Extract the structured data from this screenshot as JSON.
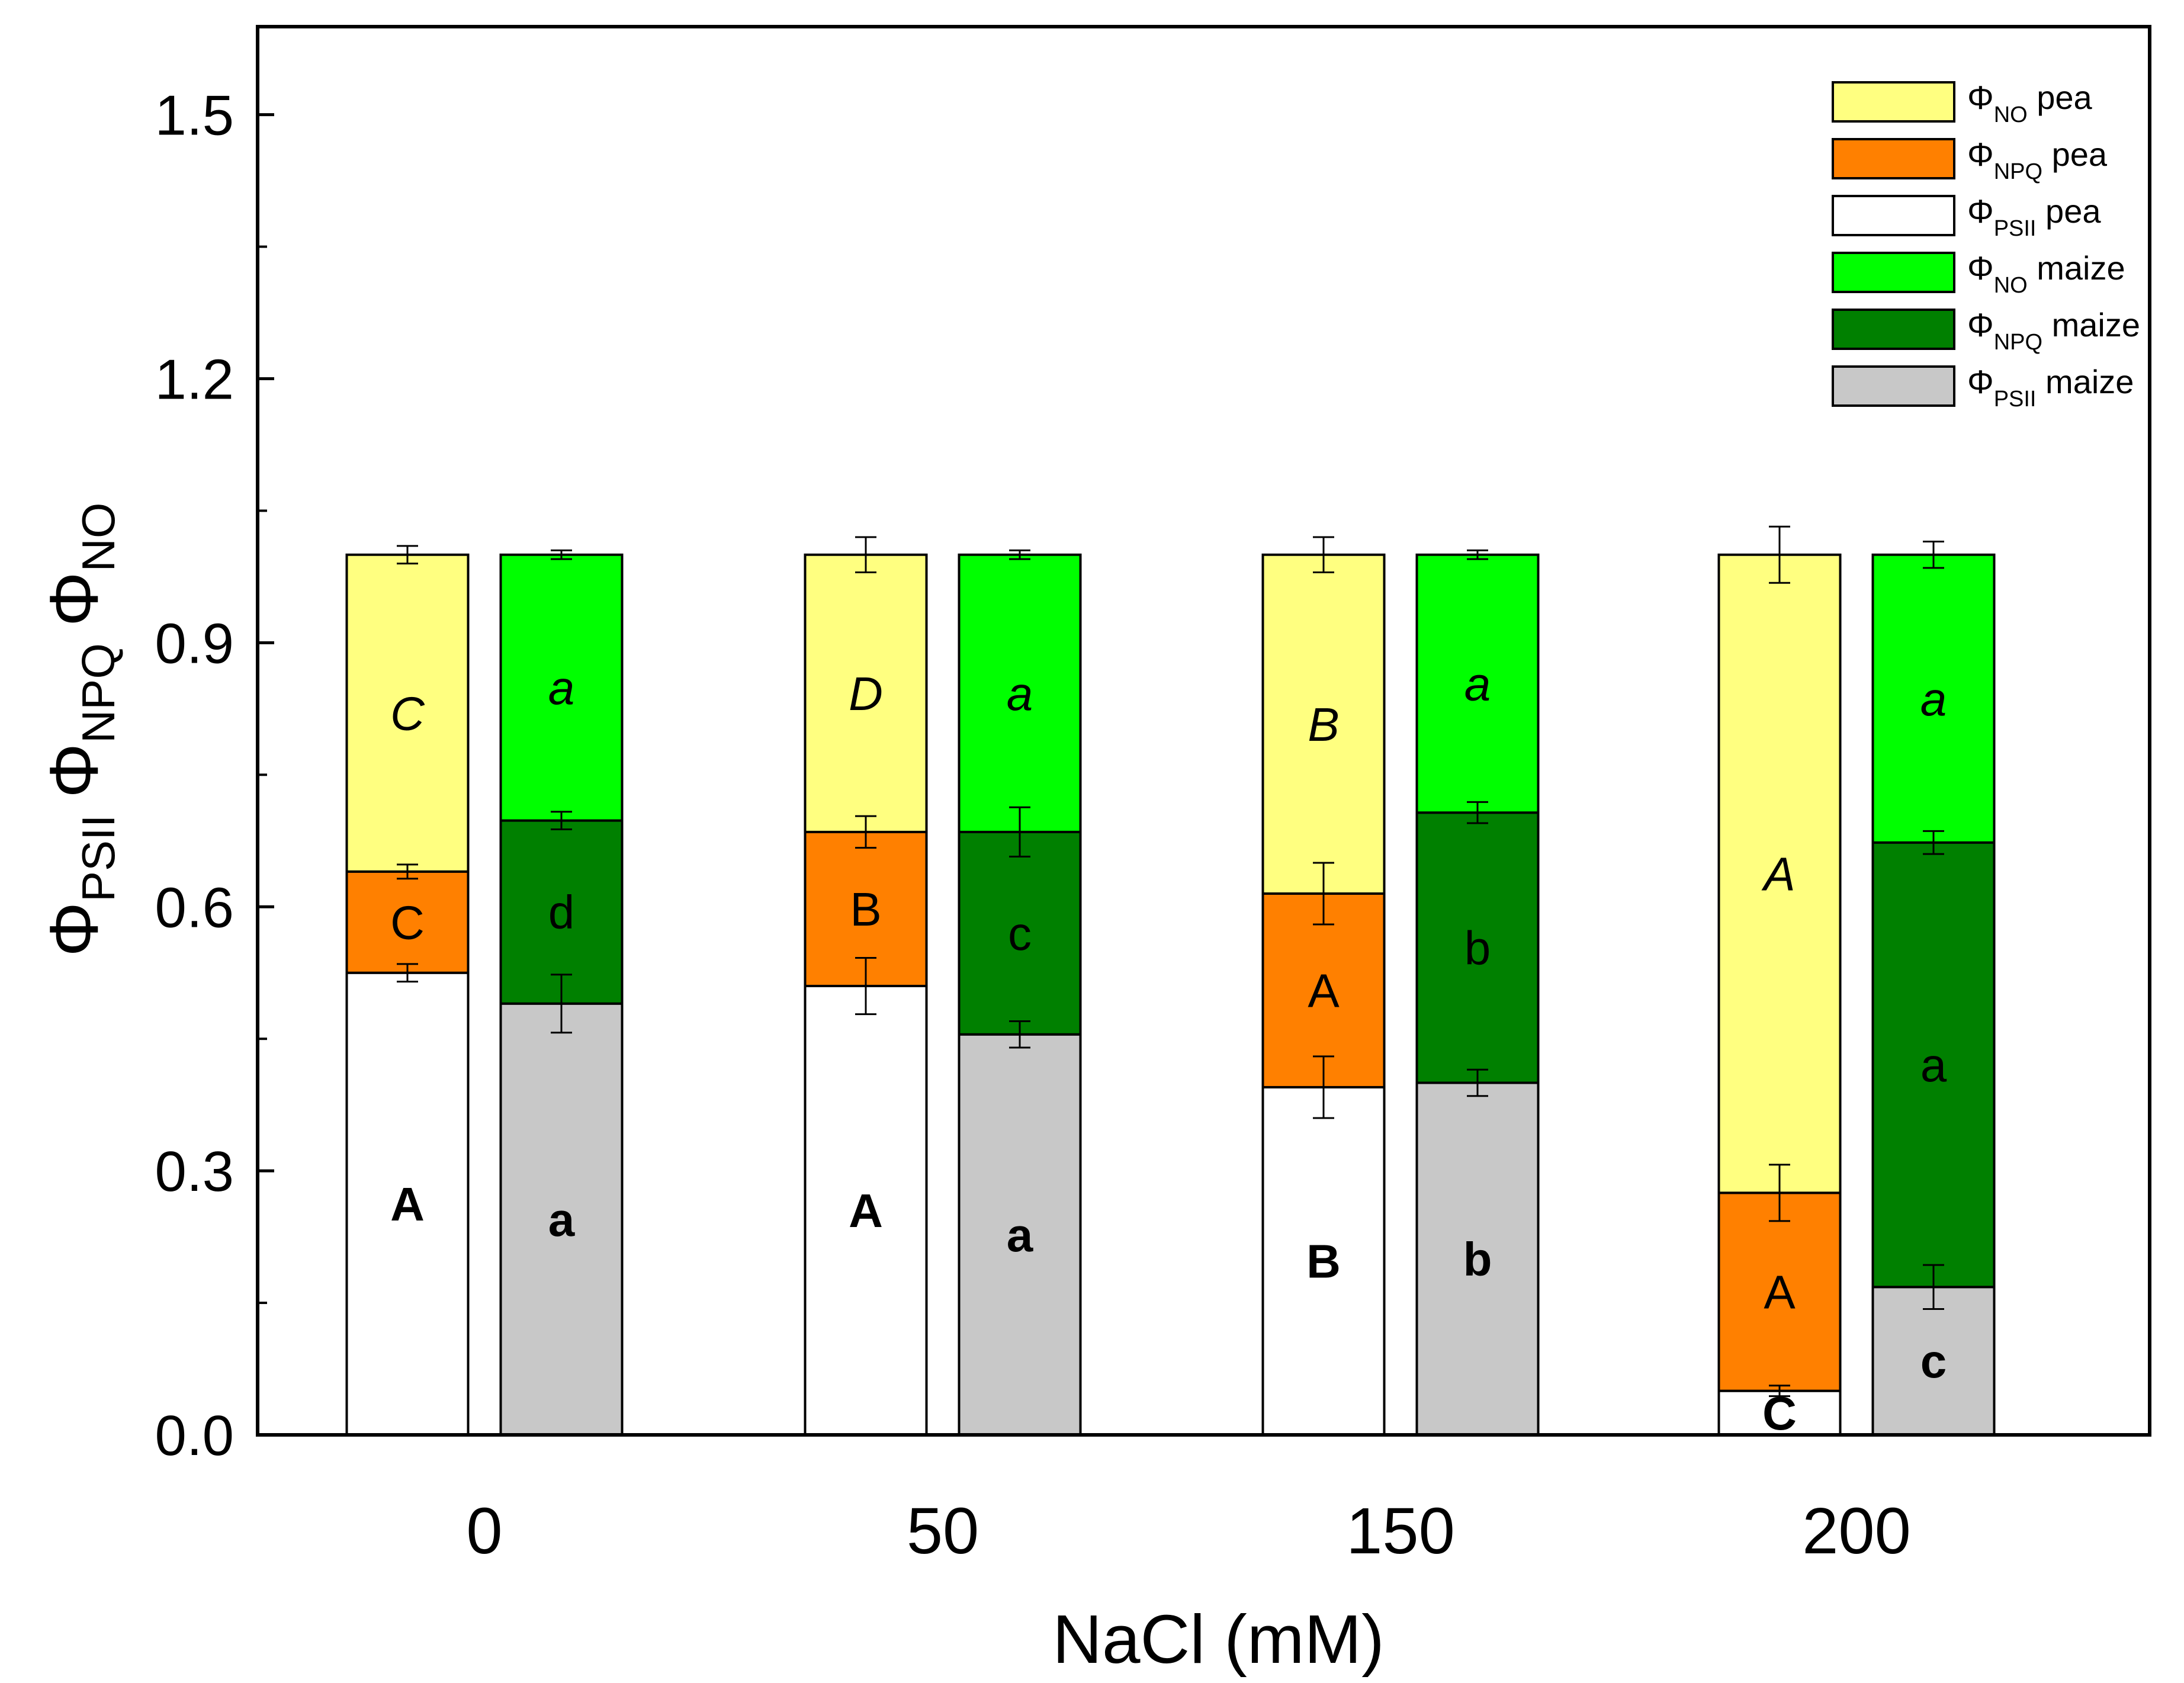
{
  "chart_data": {
    "type": "bar",
    "stacked": true,
    "xlabel": "NaCl (mM)",
    "ylabel": {
      "parts": [
        {
          "symbol": "Φ",
          "sub": "PSII"
        },
        {
          "symbol": "Φ",
          "sub": "NPQ"
        },
        {
          "symbol": "Φ",
          "sub": "NO"
        }
      ]
    },
    "ylim": [
      0,
      1.6
    ],
    "yticks": [
      "0.0",
      "0.3",
      "0.6",
      "0.9",
      "1.2",
      "1.5"
    ],
    "ytick_values": [
      0,
      0.3,
      0.6,
      0.9,
      1.2,
      1.5
    ],
    "categories": [
      "0",
      "50",
      "150",
      "200"
    ],
    "series": [
      {
        "name": "Φ_PSII pea",
        "symbol": "Φ",
        "sub": "PSII",
        "species": "pea",
        "group": "pea",
        "component": "PSII",
        "color": "#ffffff",
        "values": [
          0.525,
          0.51,
          0.395,
          0.05
        ],
        "errors": [
          0.01,
          0.032,
          0.035,
          0.006
        ],
        "letters": [
          "A",
          "A",
          "B",
          "C"
        ],
        "letter_style": "bold"
      },
      {
        "name": "Φ_NPQ pea",
        "symbol": "Φ",
        "sub": "NPQ",
        "species": "pea",
        "group": "pea",
        "component": "NPQ",
        "color": "#ff8000",
        "values": [
          0.115,
          0.175,
          0.22,
          0.225
        ],
        "errors": [
          0.008,
          0.018,
          0.035,
          0.032
        ],
        "letters": [
          "C",
          "B",
          "A",
          "A"
        ],
        "letter_style": "normal"
      },
      {
        "name": "Φ_NO pea",
        "symbol": "Φ",
        "sub": "NO",
        "species": "pea",
        "group": "pea",
        "component": "NO",
        "color": "#ffff80",
        "values": [
          0.36,
          0.315,
          0.385,
          0.725
        ],
        "errors": [
          0.01,
          0.02,
          0.02,
          0.032
        ],
        "letters": [
          "C",
          "D",
          "B",
          "A"
        ],
        "letter_style": "italic"
      },
      {
        "name": "Φ_PSII maize",
        "symbol": "Φ",
        "sub": "PSII",
        "species": "maize",
        "group": "maize",
        "component": "PSII",
        "color": "#c8c8c8",
        "values": [
          0.49,
          0.455,
          0.4,
          0.168
        ],
        "errors": [
          0.033,
          0.015,
          0.015,
          0.025
        ],
        "letters": [
          "a",
          "a",
          "b",
          "c"
        ],
        "letter_style": "bold"
      },
      {
        "name": "Φ_NPQ maize",
        "symbol": "Φ",
        "sub": "NPQ",
        "species": "maize",
        "group": "maize",
        "component": "NPQ",
        "color": "#008000",
        "values": [
          0.208,
          0.23,
          0.307,
          0.505
        ],
        "errors": [
          0.01,
          0.028,
          0.012,
          0.013
        ],
        "letters": [
          "d",
          "c",
          "b",
          "a"
        ],
        "letter_style": "normal"
      },
      {
        "name": "Φ_NO maize",
        "symbol": "Φ",
        "sub": "NO",
        "species": "maize",
        "group": "maize",
        "component": "NO",
        "color": "#00ff00",
        "values": [
          0.302,
          0.315,
          0.293,
          0.327
        ],
        "errors": [
          0.005,
          0.005,
          0.005,
          0.015
        ],
        "letters": [
          "a",
          "a",
          "a",
          "a"
        ],
        "letter_style": "italic"
      }
    ],
    "legend": {
      "position": "top-right",
      "order": [
        "Φ_NO pea",
        "Φ_NPQ pea",
        "Φ_PSII pea",
        "Φ_NO maize",
        "Φ_NPQ maize",
        "Φ_PSII maize"
      ]
    },
    "grid": false
  }
}
